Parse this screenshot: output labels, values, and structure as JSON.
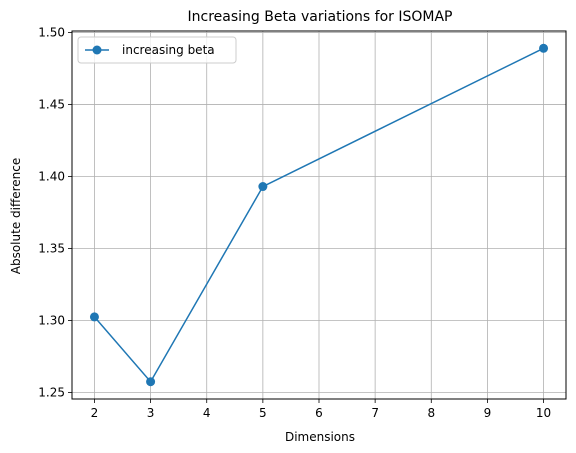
{
  "chart_data": {
    "type": "line",
    "title": "Increasing Beta variations for ISOMAP",
    "xlabel": "Dimensions",
    "ylabel": "Absolute difference",
    "x": [
      2,
      3,
      5,
      10
    ],
    "series": [
      {
        "name": "increasing beta",
        "values": [
          1.3025,
          1.2575,
          1.393,
          1.489
        ],
        "color": "#1f77b4",
        "marker": "circle"
      }
    ],
    "xlim": [
      1.6,
      10.4
    ],
    "ylim": [
      1.2455,
      1.501
    ],
    "xticks": [
      2,
      3,
      4,
      5,
      6,
      7,
      8,
      9,
      10
    ],
    "yticks": [
      1.25,
      1.3,
      1.35,
      1.4,
      1.45,
      1.5
    ],
    "ytick_labels": [
      "1.25",
      "1.30",
      "1.35",
      "1.40",
      "1.45",
      "1.50"
    ],
    "grid": true,
    "grid_color": "#b0b0b0",
    "legend_position": "top-left"
  }
}
